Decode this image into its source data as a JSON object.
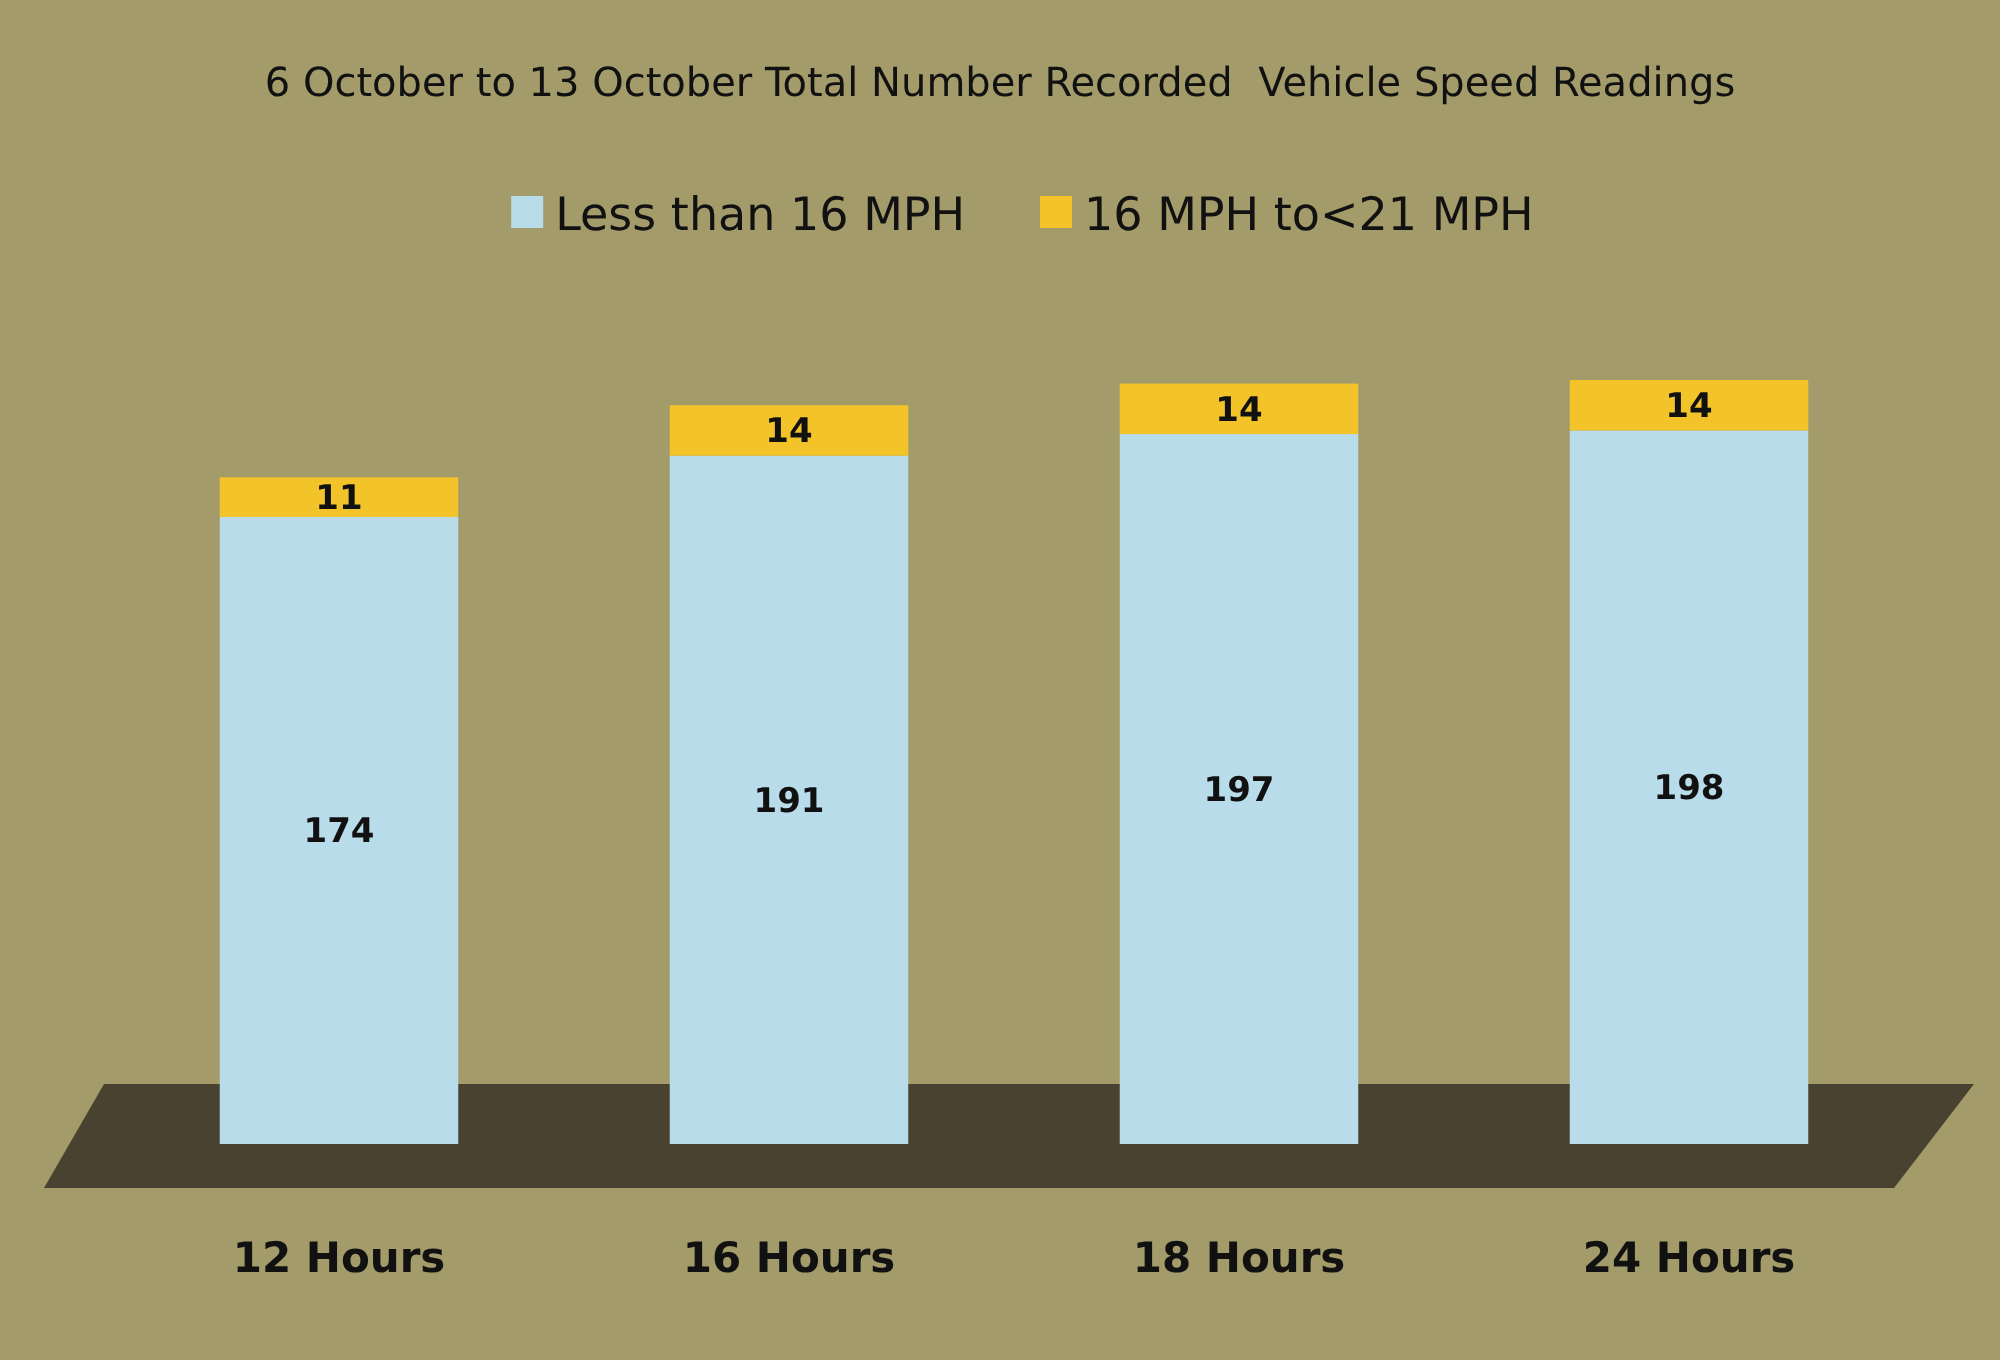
{
  "chart_data": {
    "type": "bar",
    "title": "6 October to 13 October Total Number Recorded  Vehicle Speed Readings",
    "categories": [
      "12 Hours",
      "16 Hours",
      "18 Hours",
      "24 Hours"
    ],
    "series": [
      {
        "name": "Less than 16 MPH",
        "color": "#b8dcea",
        "values": [
          174,
          191,
          197,
          198
        ]
      },
      {
        "name": "16 MPH to<21 MPH",
        "color": "#f2c42a",
        "values": [
          11,
          14,
          14,
          14
        ]
      }
    ],
    "stacked": true,
    "data_labels": true,
    "legend": "top"
  }
}
